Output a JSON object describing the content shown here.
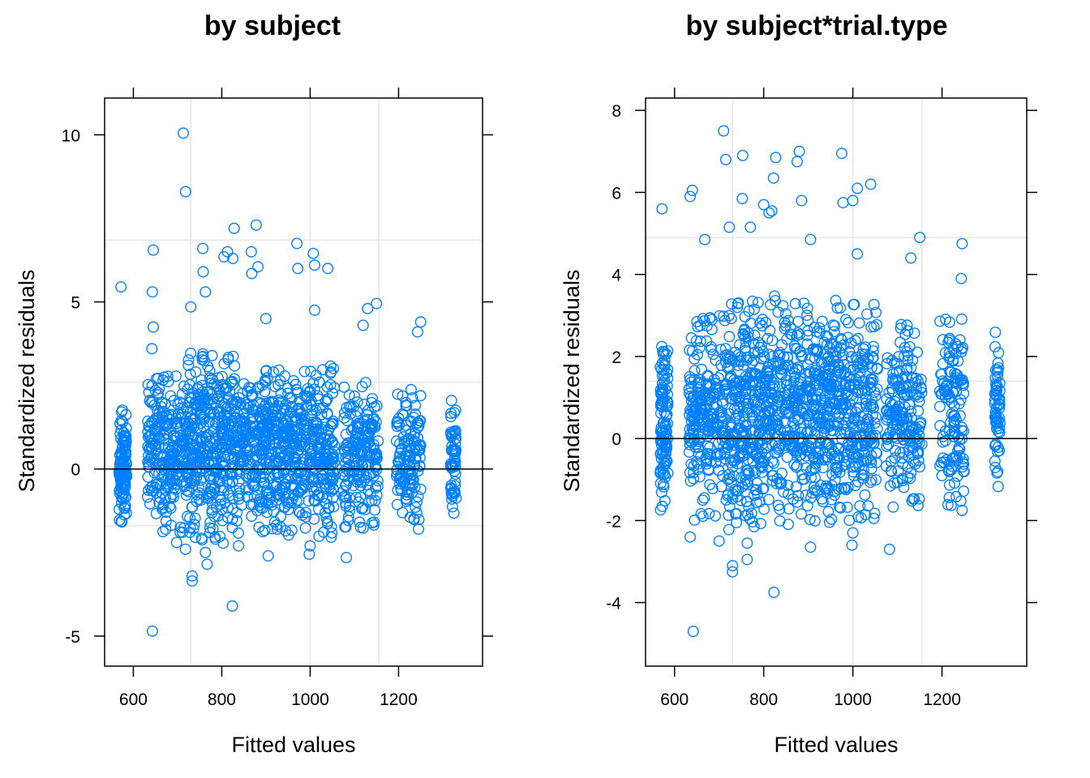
{
  "colors": {
    "points": "#0080ff",
    "grid": "#e6e6e6",
    "axis": "#000000"
  },
  "chart_data": [
    {
      "type": "scatter",
      "title": "by subject",
      "xlabel": "Fitted values",
      "ylabel": "Standardized residuals",
      "xlim": [
        535,
        1390
      ],
      "ylim": [
        -5.9,
        11.1
      ],
      "xticks": [
        600,
        800,
        1000,
        1200
      ],
      "yticks": [
        -5,
        0,
        5,
        10
      ],
      "xgrid": [
        730,
        1000,
        1155
      ],
      "ygrid": [
        -1.7,
        2.6,
        6.85
      ],
      "grid": true,
      "reference_line_y": 0,
      "clusters": [
        {
          "x": [
            568,
            585
          ],
          "lo": -1.7,
          "hi": 2.0,
          "n": 110
        },
        {
          "x": [
            632,
            720
          ],
          "lo": -1.9,
          "hi": 2.8,
          "n": 240
        },
        {
          "x": [
            720,
            830
          ],
          "lo": -2.3,
          "hi": 3.5,
          "n": 360
        },
        {
          "x": [
            830,
            945
          ],
          "lo": -2.0,
          "hi": 3.0,
          "n": 340
        },
        {
          "x": [
            945,
            1055
          ],
          "lo": -2.1,
          "hi": 3.1,
          "n": 320
        },
        {
          "x": [
            1075,
            1155
          ],
          "lo": -1.8,
          "hi": 2.6,
          "n": 190
        },
        {
          "x": [
            1195,
            1250
          ],
          "lo": -1.6,
          "hi": 2.4,
          "n": 130
        },
        {
          "x": [
            1318,
            1330
          ],
          "lo": -1.4,
          "hi": 2.2,
          "n": 60
        }
      ],
      "outliers": [
        {
          "x": 572,
          "y": 5.45
        },
        {
          "x": 713,
          "y": 10.05
        },
        {
          "x": 718,
          "y": 8.3
        },
        {
          "x": 645,
          "y": 6.55
        },
        {
          "x": 643,
          "y": 5.3
        },
        {
          "x": 757,
          "y": 6.6
        },
        {
          "x": 758,
          "y": 5.9
        },
        {
          "x": 763,
          "y": 5.3
        },
        {
          "x": 805,
          "y": 6.35
        },
        {
          "x": 813,
          "y": 6.5
        },
        {
          "x": 825,
          "y": 6.3
        },
        {
          "x": 828,
          "y": 7.2
        },
        {
          "x": 867,
          "y": 6.5
        },
        {
          "x": 878,
          "y": 7.3
        },
        {
          "x": 882,
          "y": 6.05
        },
        {
          "x": 868,
          "y": 5.85
        },
        {
          "x": 970,
          "y": 6.75
        },
        {
          "x": 972,
          "y": 6.0
        },
        {
          "x": 1007,
          "y": 6.45
        },
        {
          "x": 1010,
          "y": 6.1
        },
        {
          "x": 1040,
          "y": 6.0
        },
        {
          "x": 730,
          "y": 4.85
        },
        {
          "x": 900,
          "y": 4.5
        },
        {
          "x": 1010,
          "y": 4.75
        },
        {
          "x": 1130,
          "y": 4.8
        },
        {
          "x": 1150,
          "y": 4.95
        },
        {
          "x": 1243,
          "y": 4.1
        },
        {
          "x": 1250,
          "y": 4.4
        },
        {
          "x": 1245,
          "y": -1.8
        },
        {
          "x": 1082,
          "y": -2.65
        },
        {
          "x": 905,
          "y": -2.6
        },
        {
          "x": 998,
          "y": -2.55
        },
        {
          "x": 1000,
          "y": -2.3
        },
        {
          "x": 733,
          "y": -3.2
        },
        {
          "x": 733,
          "y": -3.35
        },
        {
          "x": 767,
          "y": -2.85
        },
        {
          "x": 824,
          "y": -4.1
        },
        {
          "x": 643,
          "y": -4.85
        },
        {
          "x": 718,
          "y": -2.4
        },
        {
          "x": 763,
          "y": -2.5
        },
        {
          "x": 838,
          "y": -2.3
        },
        {
          "x": 698,
          "y": -2.2
        },
        {
          "x": 645,
          "y": 4.25
        },
        {
          "x": 642,
          "y": 3.6
        },
        {
          "x": 1120,
          "y": 4.3
        }
      ]
    },
    {
      "type": "scatter",
      "title": "by subject*trial.type",
      "xlabel": "Fitted values",
      "ylabel": "Standardized residuals",
      "xlim": [
        535,
        1390
      ],
      "ylim": [
        -5.55,
        8.3
      ],
      "xticks": [
        600,
        800,
        1000,
        1200
      ],
      "yticks": [
        -4,
        -2,
        0,
        2,
        4,
        6,
        8
      ],
      "xgrid": [
        730,
        1000,
        1155
      ],
      "ygrid": [
        1.4,
        4.9
      ],
      "grid": true,
      "reference_line_y": 0,
      "clusters": [
        {
          "x": [
            568,
            585
          ],
          "lo": -1.8,
          "hi": 2.4,
          "n": 110
        },
        {
          "x": [
            632,
            720
          ],
          "lo": -2.0,
          "hi": 3.0,
          "n": 240
        },
        {
          "x": [
            720,
            830
          ],
          "lo": -2.3,
          "hi": 3.5,
          "n": 360
        },
        {
          "x": [
            830,
            945
          ],
          "lo": -2.1,
          "hi": 3.3,
          "n": 340
        },
        {
          "x": [
            945,
            1055
          ],
          "lo": -2.1,
          "hi": 3.4,
          "n": 320
        },
        {
          "x": [
            1075,
            1155
          ],
          "lo": -1.7,
          "hi": 2.8,
          "n": 190
        },
        {
          "x": [
            1195,
            1250
          ],
          "lo": -1.7,
          "hi": 3.0,
          "n": 130
        },
        {
          "x": [
            1318,
            1330
          ],
          "lo": -1.4,
          "hi": 2.8,
          "n": 60
        }
      ],
      "outliers": [
        {
          "x": 572,
          "y": 5.6
        },
        {
          "x": 635,
          "y": 5.9
        },
        {
          "x": 640,
          "y": 6.05
        },
        {
          "x": 710,
          "y": 7.5
        },
        {
          "x": 715,
          "y": 6.8
        },
        {
          "x": 752,
          "y": 5.85
        },
        {
          "x": 753,
          "y": 6.9
        },
        {
          "x": 818,
          "y": 5.55
        },
        {
          "x": 822,
          "y": 6.35
        },
        {
          "x": 827,
          "y": 6.85
        },
        {
          "x": 875,
          "y": 6.75
        },
        {
          "x": 880,
          "y": 7.0
        },
        {
          "x": 885,
          "y": 5.8
        },
        {
          "x": 975,
          "y": 6.95
        },
        {
          "x": 978,
          "y": 5.75
        },
        {
          "x": 1010,
          "y": 6.1
        },
        {
          "x": 1040,
          "y": 6.2
        },
        {
          "x": 1000,
          "y": 5.8
        },
        {
          "x": 770,
          "y": 5.15
        },
        {
          "x": 800,
          "y": 5.7
        },
        {
          "x": 812,
          "y": 5.5
        },
        {
          "x": 723,
          "y": 5.15
        },
        {
          "x": 668,
          "y": 4.85
        },
        {
          "x": 1150,
          "y": 4.9
        },
        {
          "x": 1245,
          "y": 4.75
        },
        {
          "x": 1243,
          "y": 3.9
        },
        {
          "x": 1130,
          "y": 4.4
        },
        {
          "x": 730,
          "y": -3.1
        },
        {
          "x": 730,
          "y": -3.25
        },
        {
          "x": 763,
          "y": -2.95
        },
        {
          "x": 823,
          "y": -3.75
        },
        {
          "x": 642,
          "y": -4.7
        },
        {
          "x": 1082,
          "y": -2.7
        },
        {
          "x": 905,
          "y": -2.65
        },
        {
          "x": 998,
          "y": -2.6
        },
        {
          "x": 1000,
          "y": -2.3
        },
        {
          "x": 635,
          "y": -2.4
        },
        {
          "x": 700,
          "y": -2.5
        },
        {
          "x": 763,
          "y": -2.55
        },
        {
          "x": 1245,
          "y": -1.75
        },
        {
          "x": 905,
          "y": 4.85
        },
        {
          "x": 1010,
          "y": 4.5
        }
      ]
    }
  ]
}
